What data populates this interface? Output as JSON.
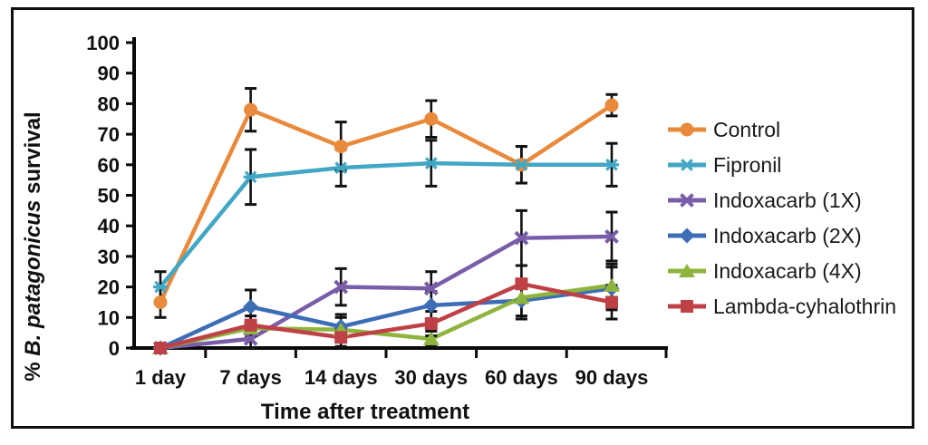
{
  "figure": {
    "y_axis_label_prefix": "% ",
    "y_axis_label_italic": "B. patagonicus",
    "y_axis_label_suffix": " survival"
  },
  "chart_data": {
    "type": "line",
    "title": "",
    "xlabel": "Time after treatment",
    "ylabel": "% B. patagonicus survival",
    "ylim": [
      0,
      100
    ],
    "yticks": [
      0,
      10,
      20,
      30,
      40,
      50,
      60,
      70,
      80,
      90,
      100
    ],
    "grid": false,
    "legend_position": "right",
    "error_bars": true,
    "categories": [
      "1 day",
      "7 days",
      "14 days",
      "30 days",
      "60 days",
      "90 days"
    ],
    "series": [
      {
        "name": "Control",
        "color": "#E8893B",
        "marker": "circle",
        "values": [
          15,
          78,
          66,
          75,
          60,
          79.5
        ],
        "errors": [
          5,
          7,
          8,
          6,
          6,
          3.5
        ]
      },
      {
        "name": "Fipronil",
        "color": "#41A7C4",
        "marker": "star",
        "values": [
          20,
          56,
          59,
          60.5,
          60,
          60
        ],
        "errors": [
          5,
          9,
          6,
          7.5,
          6,
          7
        ]
      },
      {
        "name": "Indoxacarb (1X)",
        "color": "#7A5DA8",
        "marker": "x",
        "values": [
          0,
          3,
          20,
          19.5,
          36,
          36.5
        ],
        "errors": [
          0,
          3,
          6,
          5.5,
          9,
          8
        ]
      },
      {
        "name": "Indoxacarb (2X)",
        "color": "#3D6EB5",
        "marker": "diamond",
        "values": [
          0,
          13.5,
          7,
          14,
          15.5,
          19.5
        ],
        "errors": [
          0,
          5.5,
          4,
          4.5,
          6,
          7
        ]
      },
      {
        "name": "Indoxacarb (4X)",
        "color": "#8EB43E",
        "marker": "triangle",
        "values": [
          0,
          6.5,
          6,
          3,
          16.5,
          20.5
        ],
        "errors": [
          0,
          2.5,
          4,
          2.5,
          6,
          7
        ]
      },
      {
        "name": "Lambda-cyhalothrin",
        "color": "#BE4146",
        "marker": "square",
        "values": [
          0,
          7.5,
          3.5,
          8,
          21,
          15
        ],
        "errors": [
          0,
          3,
          3,
          4,
          6,
          5.5
        ]
      }
    ]
  }
}
